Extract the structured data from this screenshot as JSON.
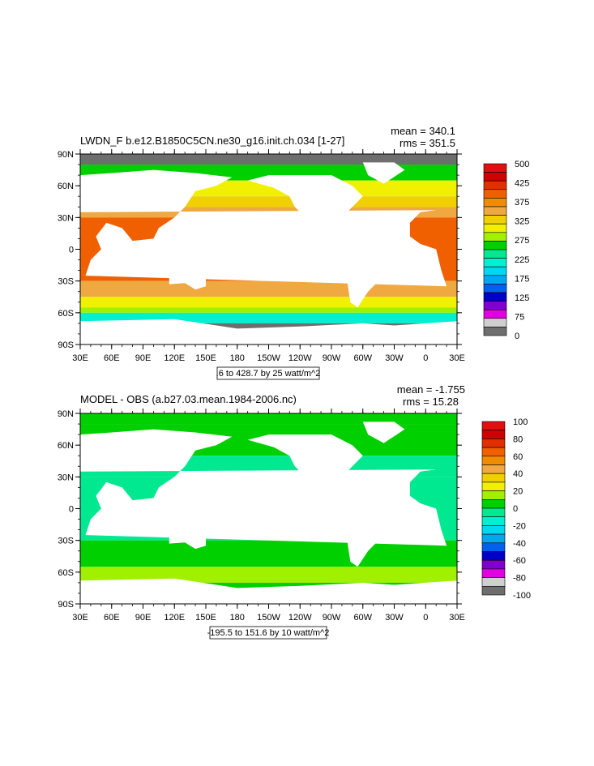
{
  "panels": [
    {
      "title": "LWDN_F b.e12.B1850C5CN.ne30_g16.init.ch.034 [1-27]",
      "mean": "mean = 340.1",
      "rms": "rms = 351.5",
      "range_label": ".6 to 428.7 by 25 watt/m^2",
      "colorbar": {
        "labels": [
          "500",
          "425",
          "375",
          "325",
          "275",
          "225",
          "175",
          "125",
          "75",
          "0"
        ],
        "colors": [
          "#6e6e6e",
          "#cfcfcf",
          "#e000e0",
          "#8000d0",
          "#0000c8",
          "#0060f0",
          "#00a8f0",
          "#00d8f0",
          "#00f0d0",
          "#00e890",
          "#00d000",
          "#a0f000",
          "#f0f000",
          "#f0d000",
          "#f0a840",
          "#f08c00",
          "#f06000",
          "#e03000",
          "#d00000",
          "#e01010"
        ]
      }
    },
    {
      "title": "MODEL - OBS (a.b27.03.mean.1984-2006.nc)",
      "mean": "mean = -1.755",
      "rms": "rms = 15.28",
      "range_label": "-195.5 to 151.6 by 10 watt/m^2",
      "colorbar": {
        "labels": [
          "100",
          "80",
          "60",
          "40",
          "20",
          "0",
          "-20",
          "-40",
          "-60",
          "-80",
          "-100"
        ],
        "colors": [
          "#6e6e6e",
          "#cfcfcf",
          "#e000e0",
          "#8000d0",
          "#0000c8",
          "#0060f0",
          "#00a8f0",
          "#00d8f0",
          "#00f0d0",
          "#00e890",
          "#00d000",
          "#a0f000",
          "#f0f000",
          "#f0d000",
          "#f0a840",
          "#f08c00",
          "#f06000",
          "#e03000",
          "#d00000",
          "#e01010"
        ]
      }
    }
  ],
  "chart_data": [
    {
      "type": "heatmap",
      "title": "LWDN_F b.e12.B1850C5CN.ne30_g16.init.ch.034 [1-27]",
      "x_tick_labels": [
        "30E",
        "60E",
        "90E",
        "120E",
        "150E",
        "180",
        "150W",
        "120W",
        "90W",
        "60W",
        "30W",
        "0",
        "30E"
      ],
      "y_tick_labels": [
        "90N",
        "60N",
        "30N",
        "0",
        "30S",
        "60S",
        "90S"
      ],
      "xlim": [
        30,
        390
      ],
      "ylim": [
        -90,
        90
      ],
      "mean": 340.1,
      "rms": 351.5,
      "contour_min": 0.6,
      "contour_max": 428.7,
      "contour_interval": 25,
      "units": "watt/m^2",
      "colorbar_ticks": [
        500,
        425,
        375,
        325,
        275,
        225,
        175,
        125,
        75,
        0
      ],
      "zonal_bands": [
        {
          "lat_from": 90,
          "lat_to": 80,
          "value": 0
        },
        {
          "lat_from": 80,
          "lat_to": 65,
          "value": 250
        },
        {
          "lat_from": 65,
          "lat_to": 50,
          "value": 300
        },
        {
          "lat_from": 50,
          "lat_to": 40,
          "value": 340
        },
        {
          "lat_from": 40,
          "lat_to": 30,
          "value": 360
        },
        {
          "lat_from": 30,
          "lat_to": -30,
          "value": 400
        },
        {
          "lat_from": -30,
          "lat_to": -45,
          "value": 360
        },
        {
          "lat_from": -45,
          "lat_to": -55,
          "value": 320
        },
        {
          "lat_from": -55,
          "lat_to": -60,
          "value": 290
        },
        {
          "lat_from": -60,
          "lat_to": -70,
          "value": 200
        },
        {
          "lat_from": -70,
          "lat_to": -90,
          "value": 0
        }
      ]
    },
    {
      "type": "heatmap",
      "title": "MODEL - OBS (a.b27.03.mean.1984-2006.nc)",
      "x_tick_labels": [
        "30E",
        "60E",
        "90E",
        "120E",
        "150E",
        "180",
        "150W",
        "120W",
        "90W",
        "60W",
        "30W",
        "0",
        "30E"
      ],
      "y_tick_labels": [
        "90N",
        "60N",
        "30N",
        "0",
        "30S",
        "60S",
        "90S"
      ],
      "xlim": [
        30,
        390
      ],
      "ylim": [
        -90,
        90
      ],
      "mean": -1.755,
      "rms": 15.28,
      "contour_min": -195.5,
      "contour_max": 151.6,
      "contour_interval": 10,
      "units": "watt/m^2",
      "colorbar_ticks": [
        100,
        80,
        60,
        40,
        20,
        0,
        -20,
        -40,
        -60,
        -80,
        -100
      ],
      "zonal_bands": [
        {
          "lat_from": 90,
          "lat_to": 80,
          "value": 0
        },
        {
          "lat_from": 80,
          "lat_to": 50,
          "value": 0
        },
        {
          "lat_from": 50,
          "lat_to": 30,
          "value": -5
        },
        {
          "lat_from": 30,
          "lat_to": -30,
          "value": -5
        },
        {
          "lat_from": -30,
          "lat_to": -55,
          "value": 5
        },
        {
          "lat_from": -55,
          "lat_to": -70,
          "value": 10
        },
        {
          "lat_from": -70,
          "lat_to": -90,
          "value": 0
        }
      ]
    }
  ]
}
